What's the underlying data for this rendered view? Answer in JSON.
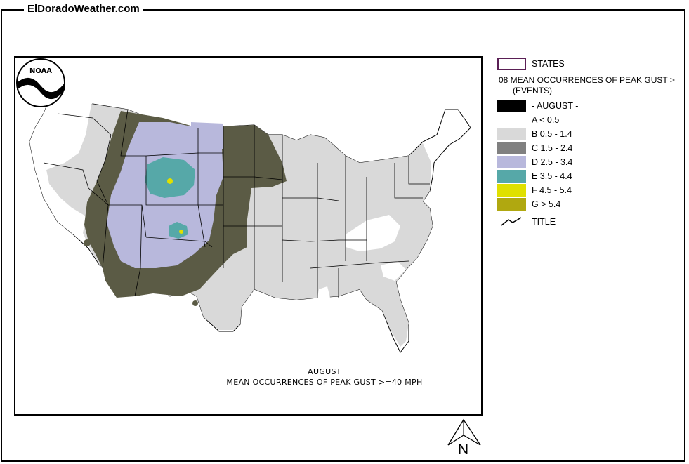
{
  "site": {
    "title": "ElDoradoWeather.com"
  },
  "map": {
    "caption_month": "AUGUST",
    "caption_title": "MEAN OCCURRENCES OF PEAK GUST >=40 MPH",
    "logo_text": "NOAA"
  },
  "legend": {
    "states_label": "STATES",
    "layer_title": "08 MEAN OCCURRENCES OF PEAK GUST >=",
    "layer_units": "(EVENTS)",
    "month_label": "- AUGUST -",
    "classes": [
      {
        "label": "A < 0.5",
        "color": "#ffffff"
      },
      {
        "label": "B 0.5 - 1.4",
        "color": "#d9d9d9"
      },
      {
        "label": "C 1.5 - 2.4",
        "color": "#808080"
      },
      {
        "label": "D 2.5 - 3.4",
        "color": "#b8b8dc"
      },
      {
        "label": "E 3.5 - 4.4",
        "color": "#56a8a8"
      },
      {
        "label": "F 4.5 - 5.4",
        "color": "#e0e000"
      },
      {
        "label": "G > 5.4",
        "color": "#b0a810"
      }
    ],
    "title_label": "TITLE"
  },
  "north_arrow": {
    "label": "N"
  }
}
